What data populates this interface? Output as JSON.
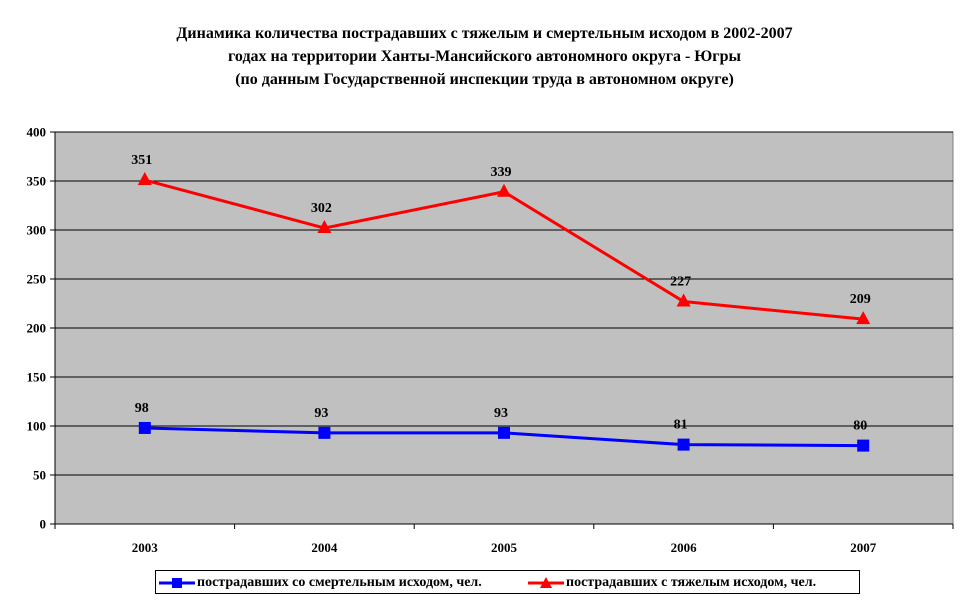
{
  "title_lines": [
    "Динамика количества пострадавших с тяжелым и смертельным исходом в 2002-2007",
    "годах на территории Ханты-Мансийского автономного округа - Югры",
    "(по данным Государственной инспекции труда в автономном округе)"
  ],
  "chart_data": {
    "type": "line",
    "title": "Динамика количества пострадавших с тяжелым и смертельным исходом в 2002-2007 годах на территории Ханты-Мансийского автономного округа - Югры (по данным Государственной инспекции труда в автономном округе)",
    "categories": [
      "2003",
      "2004",
      "2005",
      "2006",
      "2007"
    ],
    "ylim": [
      0,
      400
    ],
    "yticks": [
      0,
      50,
      100,
      150,
      200,
      250,
      300,
      350,
      400
    ],
    "grid": true,
    "legend_position": "bottom",
    "series": [
      {
        "name": "пострадавших со смертельным исходом, чел.",
        "values": [
          98,
          93,
          93,
          81,
          80
        ],
        "color": "#0000ff",
        "marker": "square"
      },
      {
        "name": "пострадавших с тяжелым исходом, чел.",
        "values": [
          351,
          302,
          339,
          227,
          209
        ],
        "color": "#ff0000",
        "marker": "triangle"
      }
    ],
    "plot_background": "#c0c0c0"
  }
}
